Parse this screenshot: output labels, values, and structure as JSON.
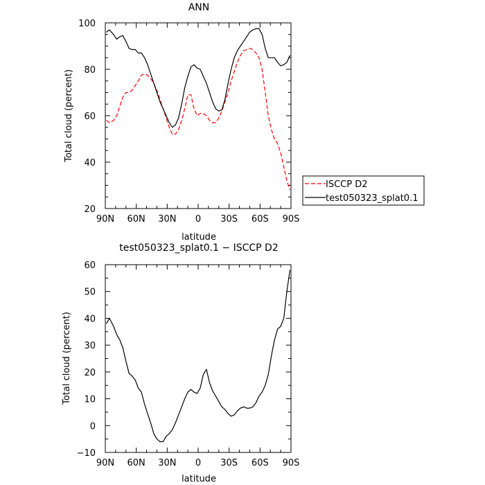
{
  "chart_data": [
    {
      "type": "line",
      "title": "ANN",
      "xlabel": "latitude",
      "ylabel": "Total cloud (percent)",
      "xlim": [
        90,
        -90
      ],
      "ylim": [
        20,
        100
      ],
      "xticks": [
        90,
        60,
        30,
        0,
        -30,
        -60,
        -90
      ],
      "xtick_labels": [
        "90N",
        "60N",
        "30N",
        "0",
        "30S",
        "60S",
        "90S"
      ],
      "yticks": [
        20,
        40,
        60,
        80,
        100
      ],
      "ytick_labels": [
        "20",
        "40",
        "60",
        "80",
        "100"
      ],
      "legend": {
        "placement": "right",
        "entries": [
          "ISCCP D2",
          "test050323_splat0.1"
        ]
      },
      "series": [
        {
          "name": "ISCCP D2",
          "color": "#ff0000",
          "dash": "dashed",
          "x": [
            89,
            86,
            82,
            79,
            76,
            73,
            70,
            67,
            64,
            61,
            58,
            55,
            52,
            49,
            46,
            43,
            40,
            37,
            34,
            31,
            28,
            25,
            22,
            19,
            16,
            13,
            10,
            7,
            4,
            1,
            -2,
            -5,
            -8,
            -11,
            -14,
            -17,
            -20,
            -23,
            -26,
            -29,
            -32,
            -35,
            -38,
            -41,
            -44,
            -47,
            -50,
            -53,
            -56,
            -59,
            -62,
            -65,
            -68,
            -71,
            -74,
            -77,
            -80,
            -83,
            -86,
            -89
          ],
          "y": [
            58,
            57,
            58,
            60,
            64,
            68,
            70,
            70,
            71,
            73,
            75,
            77.5,
            78,
            77.5,
            76,
            74,
            71,
            67,
            63,
            59,
            55,
            52,
            52,
            54,
            58,
            63,
            69,
            69,
            63,
            60,
            61,
            61,
            60,
            58,
            57,
            57,
            59,
            62,
            66,
            70,
            75,
            79,
            83,
            86,
            88,
            88.5,
            89,
            88.5,
            87,
            85,
            80,
            70,
            60,
            54,
            50,
            48,
            44,
            38,
            32,
            28
          ]
        },
        {
          "name": "test050323_splat0.1",
          "color": "#000000",
          "dash": "solid",
          "x": [
            89,
            86,
            82,
            79,
            76,
            73,
            70,
            67,
            64,
            61,
            58,
            55,
            52,
            49,
            46,
            43,
            40,
            37,
            34,
            31,
            28,
            25,
            22,
            19,
            16,
            13,
            10,
            7,
            4,
            1,
            -2,
            -5,
            -8,
            -11,
            -14,
            -17,
            -20,
            -23,
            -26,
            -29,
            -32,
            -35,
            -38,
            -41,
            -44,
            -47,
            -50,
            -53,
            -56,
            -59,
            -62,
            -65,
            -68,
            -71,
            -74,
            -77,
            -80,
            -83,
            -86,
            -89
          ],
          "y": [
            96,
            97,
            95,
            93,
            94,
            94.5,
            92,
            89,
            88.5,
            88.5,
            87,
            87,
            85,
            82,
            78,
            74,
            70,
            66,
            63,
            60,
            57,
            55,
            56,
            59,
            65,
            72,
            77,
            81,
            82,
            80.5,
            80,
            77,
            74,
            70,
            66,
            63,
            62,
            62.5,
            67,
            74,
            80,
            85,
            88,
            90,
            92,
            94,
            96,
            97,
            97.5,
            97.5,
            95,
            89,
            85,
            85,
            85,
            83,
            81.5,
            82,
            83,
            86
          ]
        }
      ]
    },
    {
      "type": "line",
      "title": "test050323_splat0.1 − ISCCP D2",
      "xlabel": "latitude",
      "ylabel": "Total cloud (percent)",
      "xlim": [
        90,
        -90
      ],
      "ylim": [
        -10,
        60
      ],
      "xticks": [
        90,
        60,
        30,
        0,
        -30,
        -60,
        -90
      ],
      "xtick_labels": [
        "90N",
        "60N",
        "30N",
        "0",
        "30S",
        "60S",
        "90S"
      ],
      "yticks": [
        -10,
        0,
        10,
        20,
        30,
        40,
        50,
        60
      ],
      "ytick_labels": [
        "−10",
        "0",
        "10",
        "20",
        "30",
        "40",
        "50",
        "60"
      ],
      "series": [
        {
          "color": "#000000",
          "dash": "solid",
          "x": [
            89,
            86,
            82,
            79,
            76,
            73,
            70,
            67,
            64,
            61,
            58,
            55,
            52,
            49,
            46,
            43,
            40,
            37,
            34,
            31,
            28,
            25,
            22,
            19,
            16,
            13,
            10,
            7,
            4,
            1,
            -2,
            -5,
            -8,
            -11,
            -14,
            -17,
            -20,
            -23,
            -26,
            -29,
            -32,
            -35,
            -38,
            -41,
            -44,
            -47,
            -50,
            -53,
            -56,
            -59,
            -62,
            -65,
            -68,
            -71,
            -74,
            -77,
            -80,
            -83,
            -86,
            -89
          ],
          "y": [
            38,
            40,
            37,
            34,
            32,
            29,
            24,
            19.5,
            18.5,
            17,
            14,
            12.5,
            8,
            4.5,
            1,
            -3,
            -5,
            -6,
            -6,
            -4,
            -3,
            -1.5,
            1,
            4,
            7,
            10,
            12.5,
            13.5,
            12.5,
            12,
            14,
            19,
            21,
            16,
            13,
            11,
            9,
            7,
            6,
            4.5,
            3.5,
            4,
            5.5,
            6.5,
            7,
            6.5,
            6.5,
            7,
            8.5,
            11,
            12.5,
            15,
            19,
            26,
            32,
            36,
            37,
            40,
            50,
            58
          ]
        }
      ]
    }
  ]
}
